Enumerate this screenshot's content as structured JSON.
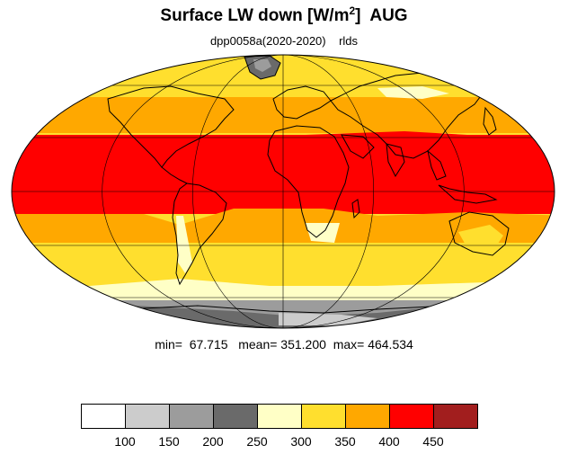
{
  "title": {
    "prefix": "Surface LW down [W/m",
    "superscript": "2",
    "suffix": "]  AUG"
  },
  "subtitle": {
    "experiment": "dpp0058a(2020-2020)",
    "variable": "rlds"
  },
  "stats": {
    "min_label": "min=",
    "min": "67.715",
    "mean_label": "mean=",
    "mean": "351.200",
    "max_label": "max=",
    "max": "464.534"
  },
  "colorbar": {
    "colors": [
      "#ffffff",
      "#cccccc",
      "#9c9c9c",
      "#6a6a6a",
      "#ffffc6",
      "#ffdf2e",
      "#ffa800",
      "#ff0000",
      "#a21e1e"
    ],
    "labels": [
      "100",
      "150",
      "200",
      "250",
      "300",
      "350",
      "400",
      "450"
    ]
  },
  "map": {
    "projection": "Mollweide",
    "land_outline_color": "#000000",
    "graticule_color": "#000000"
  }
}
